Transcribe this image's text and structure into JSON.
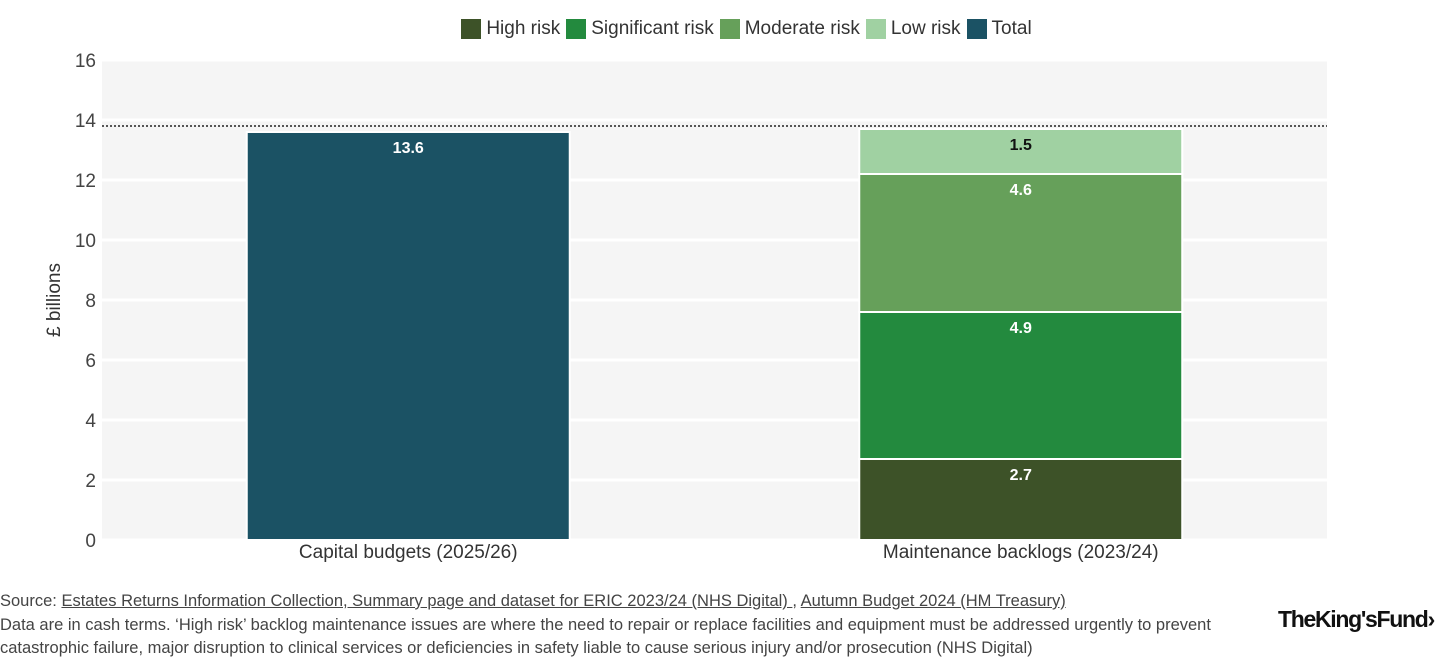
{
  "chart_data": {
    "type": "stacked-bar",
    "ylabel": "£ billions",
    "ylim": [
      0,
      16
    ],
    "yticks": [
      0,
      2,
      4,
      6,
      8,
      10,
      12,
      14,
      16
    ],
    "categories": [
      "Capital budgets (2025/26)",
      "Maintenance backlogs (2023/24)"
    ],
    "series": [
      {
        "name": "High risk",
        "color": "#3d5228",
        "values": [
          null,
          2.7
        ]
      },
      {
        "name": "Significant risk",
        "color": "#238a3e",
        "values": [
          null,
          4.9
        ]
      },
      {
        "name": "Moderate risk",
        "color": "#66a05a",
        "values": [
          null,
          4.6
        ]
      },
      {
        "name": "Low risk",
        "color": "#a0d1a2",
        "values": [
          null,
          1.5
        ]
      },
      {
        "name": "Total",
        "color": "#1b5264",
        "values": [
          13.6,
          null
        ]
      }
    ],
    "reference_line": {
      "value": 13.8,
      "style": "dotted"
    },
    "grid": true,
    "legend_position": "top-center"
  },
  "footer": {
    "source_prefix": "Source: ",
    "source_link1": "Estates Returns Information Collection, Summary page and dataset for ERIC 2023/24 (NHS Digital) ",
    "source_sep": ", ",
    "source_link2": "Autumn Budget 2024 (HM Treasury)",
    "note_line1": "Data are in cash terms. ‘High risk’ backlog maintenance issues are where the need to repair or replace facilities and equipment must be addressed urgently to prevent",
    "note_line2": "catastrophic failure, major disruption to clinical services or deficiencies in safety liable to cause serious injury and/or prosecution (NHS Digital)"
  },
  "logo": {
    "text": "TheKing'sFund",
    "chevron": "›"
  }
}
